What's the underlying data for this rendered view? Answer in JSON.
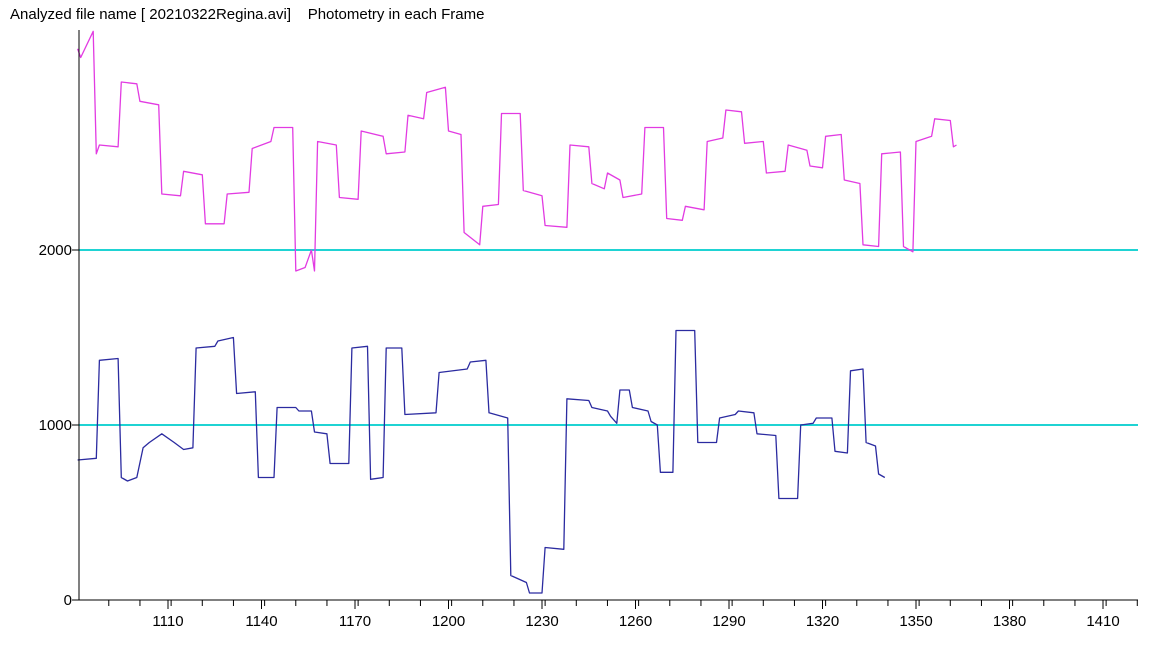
{
  "title": "Analyzed file name [ 20210322Regina.avi]    Photometry in each Frame",
  "colors": {
    "background": "#ffffff",
    "axis": "#000000",
    "reference_line": "#1fd3d3",
    "upper_series": "#e23be2",
    "lower_series": "#2b2ba0"
  },
  "chart_data": {
    "type": "line",
    "title": "Analyzed file name [ 20210322Regina.avi]    Photometry in each Frame",
    "xlabel": "",
    "ylabel": "",
    "xlim": [
      1081,
      1421
    ],
    "ylim": [
      0,
      3200
    ],
    "xticks": [
      1110,
      1140,
      1170,
      1200,
      1230,
      1260,
      1290,
      1320,
      1350,
      1380,
      1410
    ],
    "yticks": [
      0,
      1000,
      2000
    ],
    "grid": false,
    "reference_lines": [
      1000,
      2000
    ],
    "series": [
      {
        "color": "#e23be2",
        "points": [
          [
            1081,
            3150
          ],
          [
            1082,
            3100
          ],
          [
            1086,
            3250
          ],
          [
            1087,
            2550
          ],
          [
            1088,
            2600
          ],
          [
            1094,
            2590
          ],
          [
            1095,
            2960
          ],
          [
            1100,
            2950
          ],
          [
            1101,
            2850
          ],
          [
            1107,
            2830
          ],
          [
            1108,
            2320
          ],
          [
            1114,
            2310
          ],
          [
            1115,
            2450
          ],
          [
            1121,
            2430
          ],
          [
            1122,
            2150
          ],
          [
            1128,
            2150
          ],
          [
            1129,
            2320
          ],
          [
            1136,
            2330
          ],
          [
            1137,
            2580
          ],
          [
            1143,
            2620
          ],
          [
            1144,
            2700
          ],
          [
            1150,
            2700
          ],
          [
            1151,
            1880
          ],
          [
            1154,
            1900
          ],
          [
            1156,
            2000
          ],
          [
            1157,
            1880
          ],
          [
            1158,
            2620
          ],
          [
            1164,
            2600
          ],
          [
            1165,
            2300
          ],
          [
            1171,
            2290
          ],
          [
            1172,
            2680
          ],
          [
            1179,
            2650
          ],
          [
            1180,
            2550
          ],
          [
            1186,
            2560
          ],
          [
            1187,
            2770
          ],
          [
            1192,
            2750
          ],
          [
            1193,
            2900
          ],
          [
            1199,
            2930
          ],
          [
            1200,
            2680
          ],
          [
            1204,
            2660
          ],
          [
            1205,
            2100
          ],
          [
            1210,
            2030
          ],
          [
            1211,
            2250
          ],
          [
            1216,
            2260
          ],
          [
            1217,
            2780
          ],
          [
            1223,
            2780
          ],
          [
            1224,
            2340
          ],
          [
            1230,
            2310
          ],
          [
            1231,
            2140
          ],
          [
            1238,
            2130
          ],
          [
            1239,
            2600
          ],
          [
            1245,
            2590
          ],
          [
            1246,
            2380
          ],
          [
            1250,
            2350
          ],
          [
            1251,
            2440
          ],
          [
            1255,
            2400
          ],
          [
            1256,
            2300
          ],
          [
            1262,
            2320
          ],
          [
            1263,
            2700
          ],
          [
            1269,
            2700
          ],
          [
            1270,
            2180
          ],
          [
            1275,
            2170
          ],
          [
            1276,
            2250
          ],
          [
            1282,
            2230
          ],
          [
            1283,
            2620
          ],
          [
            1288,
            2640
          ],
          [
            1289,
            2800
          ],
          [
            1294,
            2790
          ],
          [
            1295,
            2610
          ],
          [
            1301,
            2620
          ],
          [
            1302,
            2440
          ],
          [
            1308,
            2450
          ],
          [
            1309,
            2600
          ],
          [
            1315,
            2570
          ],
          [
            1316,
            2480
          ],
          [
            1320,
            2470
          ],
          [
            1321,
            2650
          ],
          [
            1326,
            2660
          ],
          [
            1327,
            2400
          ],
          [
            1332,
            2380
          ],
          [
            1333,
            2030
          ],
          [
            1338,
            2020
          ],
          [
            1339,
            2550
          ],
          [
            1345,
            2560
          ],
          [
            1346,
            2020
          ],
          [
            1349,
            1990
          ],
          [
            1350,
            2620
          ],
          [
            1355,
            2650
          ],
          [
            1356,
            2750
          ],
          [
            1361,
            2740
          ],
          [
            1362,
            2590
          ],
          [
            1363,
            2600
          ]
        ]
      },
      {
        "color": "#2b2ba0",
        "points": [
          [
            1081,
            800
          ],
          [
            1087,
            810
          ],
          [
            1088,
            1370
          ],
          [
            1094,
            1380
          ],
          [
            1095,
            700
          ],
          [
            1097,
            680
          ],
          [
            1100,
            700
          ],
          [
            1102,
            870
          ],
          [
            1104,
            900
          ],
          [
            1108,
            950
          ],
          [
            1112,
            900
          ],
          [
            1115,
            860
          ],
          [
            1118,
            870
          ],
          [
            1119,
            1440
          ],
          [
            1125,
            1450
          ],
          [
            1126,
            1480
          ],
          [
            1131,
            1500
          ],
          [
            1132,
            1180
          ],
          [
            1138,
            1190
          ],
          [
            1139,
            700
          ],
          [
            1144,
            700
          ],
          [
            1145,
            1100
          ],
          [
            1151,
            1100
          ],
          [
            1152,
            1080
          ],
          [
            1156,
            1080
          ],
          [
            1157,
            960
          ],
          [
            1161,
            950
          ],
          [
            1162,
            780
          ],
          [
            1168,
            780
          ],
          [
            1169,
            1440
          ],
          [
            1174,
            1450
          ],
          [
            1175,
            690
          ],
          [
            1179,
            700
          ],
          [
            1180,
            1440
          ],
          [
            1185,
            1440
          ],
          [
            1186,
            1060
          ],
          [
            1196,
            1070
          ],
          [
            1197,
            1300
          ],
          [
            1206,
            1320
          ],
          [
            1207,
            1360
          ],
          [
            1212,
            1370
          ],
          [
            1213,
            1070
          ],
          [
            1219,
            1040
          ],
          [
            1220,
            140
          ],
          [
            1225,
            100
          ],
          [
            1226,
            40
          ],
          [
            1230,
            40
          ],
          [
            1231,
            300
          ],
          [
            1237,
            290
          ],
          [
            1238,
            1150
          ],
          [
            1245,
            1140
          ],
          [
            1246,
            1100
          ],
          [
            1251,
            1080
          ],
          [
            1252,
            1050
          ],
          [
            1254,
            1010
          ],
          [
            1255,
            1200
          ],
          [
            1258,
            1200
          ],
          [
            1259,
            1100
          ],
          [
            1264,
            1080
          ],
          [
            1265,
            1020
          ],
          [
            1267,
            1000
          ],
          [
            1268,
            730
          ],
          [
            1272,
            730
          ],
          [
            1273,
            1540
          ],
          [
            1279,
            1540
          ],
          [
            1280,
            900
          ],
          [
            1286,
            900
          ],
          [
            1287,
            1040
          ],
          [
            1292,
            1060
          ],
          [
            1293,
            1080
          ],
          [
            1298,
            1070
          ],
          [
            1299,
            950
          ],
          [
            1305,
            940
          ],
          [
            1306,
            580
          ],
          [
            1312,
            580
          ],
          [
            1313,
            1000
          ],
          [
            1317,
            1010
          ],
          [
            1318,
            1040
          ],
          [
            1323,
            1040
          ],
          [
            1324,
            850
          ],
          [
            1328,
            840
          ],
          [
            1329,
            1310
          ],
          [
            1333,
            1320
          ],
          [
            1334,
            900
          ],
          [
            1337,
            880
          ],
          [
            1338,
            720
          ],
          [
            1340,
            700
          ]
        ]
      }
    ]
  }
}
